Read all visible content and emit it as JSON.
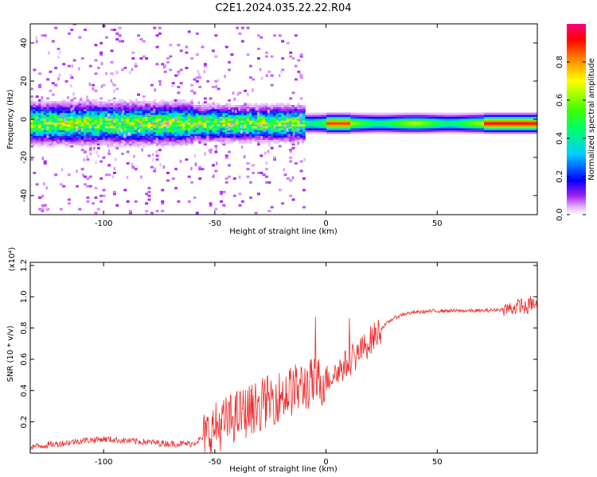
{
  "title": "C2E1.2024.035.22.22.R04",
  "colors": {
    "snr_line": "#ee2a2a",
    "colormap": [
      "#ffffff",
      "#e6b3ff",
      "#a020f0",
      "#0000ff",
      "#00d0ff",
      "#00ff66",
      "#40ff00",
      "#ffff00",
      "#ff8000",
      "#ff0000",
      "#ff0080"
    ]
  },
  "chart_data": [
    {
      "type": "heatmap",
      "title": "",
      "xlabel": "Height of straight line (km)",
      "ylabel": "Frequency (Hz)",
      "xlim": [
        -133,
        95
      ],
      "ylim": [
        -50,
        50
      ],
      "x_ticks": [
        -100,
        -50,
        0,
        50
      ],
      "x_tick_labels": [
        "-100",
        "-50",
        "0",
        "50"
      ],
      "y_ticks": [
        -40,
        -20,
        0,
        20,
        40
      ],
      "y_tick_labels": [
        "-40",
        "-20",
        "0",
        "20",
        "40"
      ],
      "colorbar": {
        "label": "Normalized spectral amplitude",
        "range": [
          0,
          1
        ],
        "ticks": [
          0.0,
          0.2,
          0.4,
          0.6,
          0.8
        ],
        "tick_labels": [
          "0.0",
          "0.2",
          "0.4",
          "0.6",
          "0.8"
        ]
      },
      "description_of_data": {
        "center_frequency_hz": -2,
        "noisy_region_x": [
          -133,
          -10
        ],
        "steady_region_x": [
          -10,
          95
        ],
        "peak_amplitude_region_x": [
          70,
          95
        ]
      }
    },
    {
      "type": "line",
      "title": "",
      "xlabel": "Height of straight line (km)",
      "ylabel": "SNR (10 * v/v)",
      "scale_label": "(x10⁴)",
      "xlim": [
        -133,
        95
      ],
      "ylim": [
        0,
        1.22
      ],
      "x_ticks": [
        -100,
        -50,
        0,
        50
      ],
      "x_tick_labels": [
        "-100",
        "-50",
        "0",
        "50"
      ],
      "y_ticks": [
        0.2,
        0.4,
        0.6,
        0.8,
        1.0,
        1.2
      ],
      "y_tick_labels": [
        "0.2",
        "0.4",
        "0.6",
        "0.8",
        "1.0",
        "1.2"
      ],
      "series": [
        {
          "x": [
            -133,
            -120,
            -110,
            -100,
            -90,
            -80,
            -70,
            -60,
            -55,
            -50,
            -45,
            -40,
            -35,
            -30,
            -25,
            -20,
            -15,
            -10,
            -5,
            0,
            5,
            10,
            15,
            20,
            25,
            30,
            35,
            40,
            50,
            60,
            70,
            80,
            85,
            88,
            90,
            92,
            95
          ],
          "values": [
            0.04,
            0.06,
            0.08,
            0.09,
            0.08,
            0.07,
            0.06,
            0.06,
            0.1,
            0.16,
            0.2,
            0.24,
            0.27,
            0.31,
            0.34,
            0.37,
            0.4,
            0.43,
            0.45,
            0.47,
            0.52,
            0.58,
            0.64,
            0.72,
            0.8,
            0.86,
            0.89,
            0.9,
            0.91,
            0.91,
            0.91,
            0.92,
            0.93,
            0.95,
            0.92,
            0.96,
            0.94
          ]
        }
      ]
    }
  ]
}
